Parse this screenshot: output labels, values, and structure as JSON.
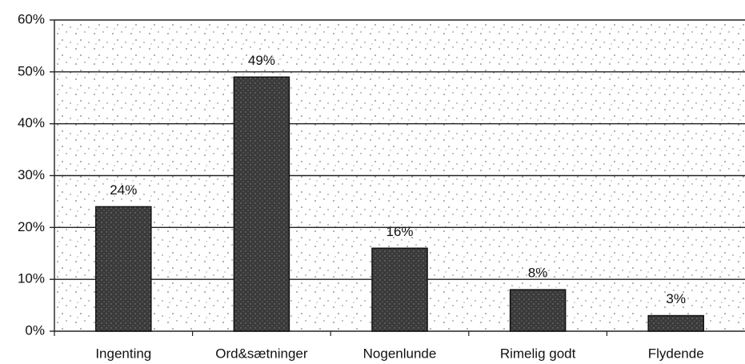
{
  "chart_data": {
    "type": "bar",
    "categories": [
      "Ingenting",
      "Ord&sætninger",
      "Nogenlunde",
      "Rimelig godt",
      "Flydende"
    ],
    "values": [
      24,
      49,
      16,
      8,
      3
    ],
    "value_labels": [
      "24%",
      "49%",
      "16%",
      "8%",
      "3%"
    ],
    "color": "#3a3a3a",
    "ylim": [
      0,
      60
    ],
    "yticks": [
      {
        "value": 0,
        "label": "0%"
      },
      {
        "value": 10,
        "label": "10%"
      },
      {
        "value": 20,
        "label": "20%"
      },
      {
        "value": 30,
        "label": "30%"
      },
      {
        "value": 40,
        "label": "40%"
      },
      {
        "value": 50,
        "label": "50%"
      },
      {
        "value": 60,
        "label": "60%"
      }
    ],
    "grid": true
  }
}
